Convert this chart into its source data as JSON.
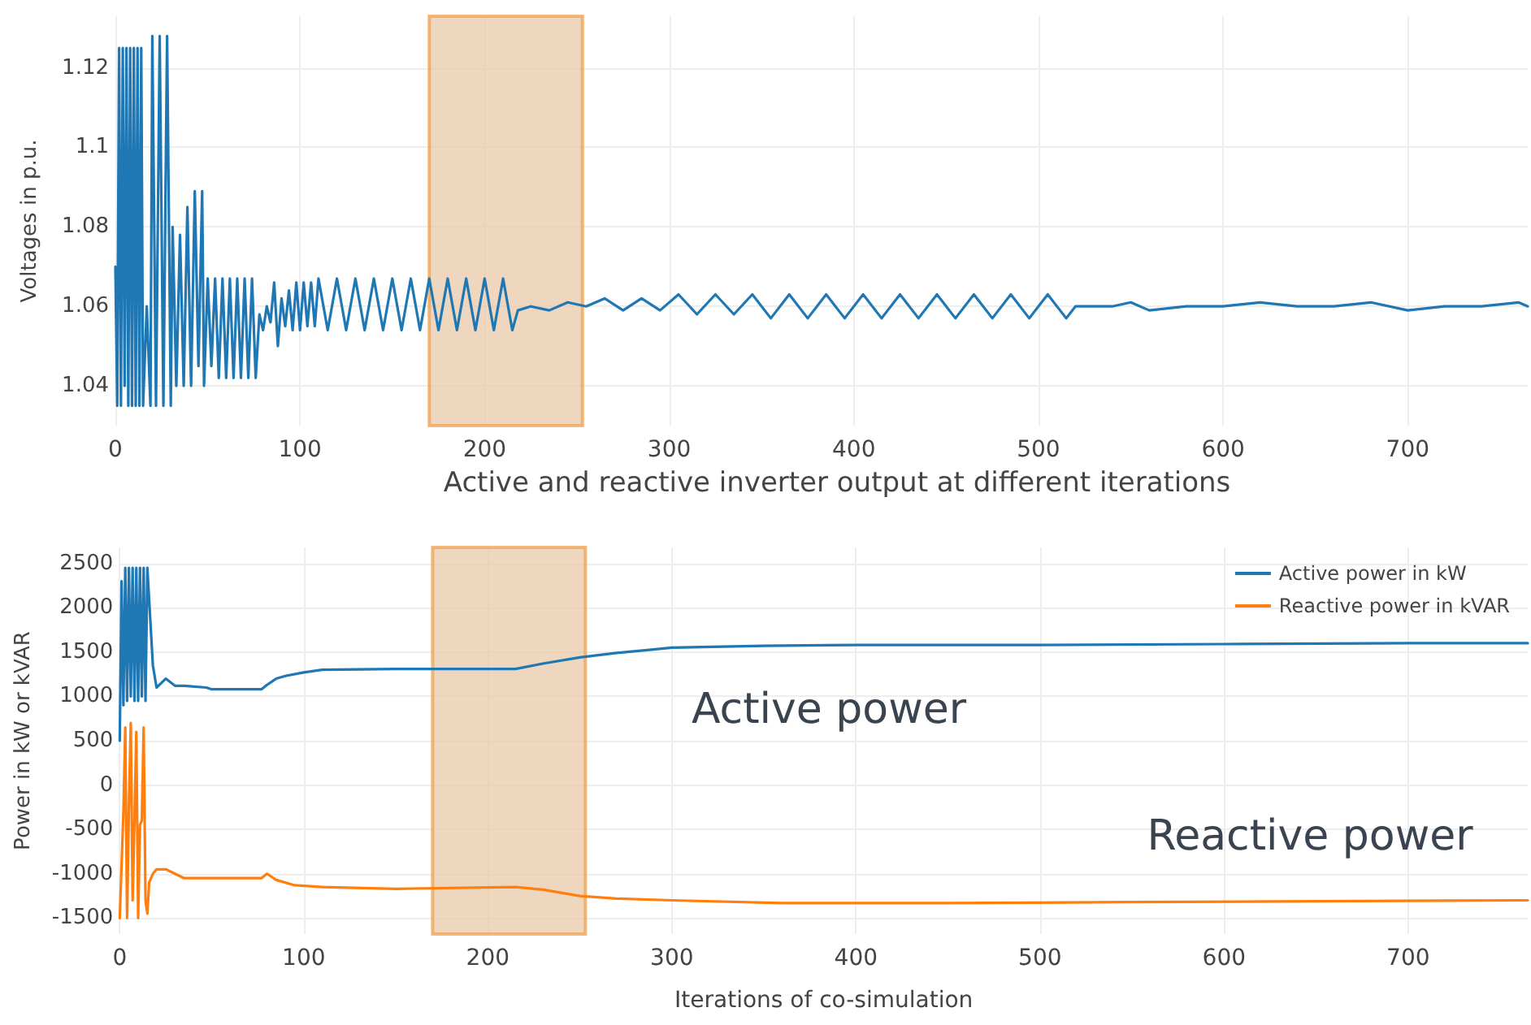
{
  "chart_data": [
    {
      "type": "line",
      "ylabel": "Voltages in p.u.",
      "xlim": [
        0,
        765
      ],
      "xticks": [
        0,
        100,
        200,
        300,
        400,
        500,
        600,
        700
      ],
      "ylim": [
        1.03,
        1.133
      ],
      "yticks": [
        1.04,
        1.06,
        1.08,
        1.1,
        1.12
      ],
      "grid": true,
      "legend": false,
      "marker": "none",
      "line_style": "solid",
      "bands": [
        {
          "axis": "x",
          "from": 170,
          "to": 253,
          "color": "#e9caa9"
        }
      ],
      "series": [
        {
          "color": "#1f77b4",
          "x": [
            0,
            1,
            2,
            3,
            4,
            5,
            6,
            7,
            8,
            9,
            10,
            11,
            12,
            13,
            14,
            15,
            17,
            19,
            20,
            22,
            24,
            26,
            28,
            30,
            31,
            33,
            35,
            37,
            39,
            41,
            43,
            45,
            47,
            48,
            50,
            52,
            54,
            56,
            58,
            60,
            62,
            64,
            66,
            68,
            70,
            72,
            74,
            76,
            78,
            80,
            82,
            84,
            86,
            88,
            90,
            92,
            94,
            96,
            98,
            100,
            102,
            104,
            106,
            108,
            110,
            115,
            120,
            125,
            130,
            135,
            140,
            145,
            150,
            155,
            160,
            165,
            170,
            175,
            180,
            185,
            190,
            195,
            200,
            205,
            210,
            215,
            218,
            225,
            235,
            245,
            255,
            265,
            275,
            285,
            295,
            305,
            315,
            325,
            335,
            345,
            355,
            365,
            375,
            385,
            395,
            405,
            415,
            425,
            435,
            445,
            455,
            465,
            475,
            485,
            495,
            505,
            515,
            520,
            540,
            550,
            560,
            580,
            600,
            620,
            640,
            660,
            680,
            700,
            720,
            740,
            760,
            765
          ],
          "values": [
            1.07,
            1.035,
            1.125,
            1.035,
            1.125,
            1.04,
            1.125,
            1.035,
            1.125,
            1.035,
            1.125,
            1.035,
            1.125,
            1.035,
            1.125,
            1.035,
            1.06,
            1.035,
            1.128,
            1.035,
            1.128,
            1.035,
            1.128,
            1.035,
            1.08,
            1.04,
            1.078,
            1.04,
            1.085,
            1.04,
            1.089,
            1.045,
            1.089,
            1.04,
            1.067,
            1.045,
            1.067,
            1.042,
            1.067,
            1.042,
            1.067,
            1.042,
            1.067,
            1.042,
            1.067,
            1.042,
            1.067,
            1.042,
            1.058,
            1.054,
            1.06,
            1.056,
            1.066,
            1.05,
            1.062,
            1.055,
            1.064,
            1.054,
            1.066,
            1.054,
            1.066,
            1.055,
            1.066,
            1.055,
            1.067,
            1.054,
            1.067,
            1.054,
            1.067,
            1.054,
            1.067,
            1.054,
            1.067,
            1.054,
            1.067,
            1.054,
            1.067,
            1.054,
            1.067,
            1.054,
            1.067,
            1.054,
            1.067,
            1.054,
            1.067,
            1.054,
            1.059,
            1.06,
            1.059,
            1.061,
            1.06,
            1.062,
            1.059,
            1.062,
            1.059,
            1.063,
            1.058,
            1.063,
            1.058,
            1.063,
            1.057,
            1.063,
            1.057,
            1.063,
            1.057,
            1.063,
            1.057,
            1.063,
            1.057,
            1.063,
            1.057,
            1.063,
            1.057,
            1.063,
            1.057,
            1.063,
            1.057,
            1.06,
            1.06,
            1.061,
            1.059,
            1.06,
            1.06,
            1.061,
            1.06,
            1.06,
            1.061,
            1.059,
            1.06,
            1.06,
            1.061,
            1.06
          ]
        }
      ]
    },
    {
      "type": "line",
      "title": "Active and reactive inverter output at different iterations",
      "xlabel": "Iterations of co-simulation",
      "ylabel": "Power in kW or kVAR",
      "xlim": [
        0,
        765
      ],
      "xticks": [
        0,
        100,
        200,
        300,
        400,
        500,
        600,
        700
      ],
      "ylim": [
        -1680,
        2680
      ],
      "yticks": [
        -1500,
        -1000,
        -500,
        0,
        500,
        1000,
        1500,
        2000,
        2500
      ],
      "grid": true,
      "legend": "top right",
      "marker": "none",
      "line_style": "solid",
      "bands": [
        {
          "axis": "x",
          "from": 170,
          "to": 253,
          "color": "#e9caa9"
        }
      ],
      "annotations": [
        "Active power",
        "Reactive power"
      ],
      "series": [
        {
          "name": "Active power in kW",
          "color": "#1f77b4",
          "x": [
            0,
            1,
            2,
            3,
            4,
            5,
            6,
            7,
            8,
            9,
            10,
            11,
            12,
            13,
            14,
            15,
            18,
            20,
            25,
            30,
            35,
            47,
            50,
            77,
            80,
            85,
            90,
            100,
            110,
            150,
            215,
            230,
            250,
            270,
            290,
            300,
            350,
            400,
            500,
            600,
            700,
            765
          ],
          "values": [
            500,
            2300,
            900,
            2450,
            950,
            2450,
            1000,
            2450,
            950,
            2450,
            950,
            2450,
            1000,
            2450,
            950,
            2450,
            1350,
            1100,
            1200,
            1120,
            1120,
            1100,
            1080,
            1080,
            1130,
            1200,
            1230,
            1270,
            1300,
            1310,
            1310,
            1370,
            1440,
            1490,
            1530,
            1550,
            1570,
            1580,
            1580,
            1590,
            1600,
            1600
          ]
        },
        {
          "name": "Reactive power in kVAR",
          "color": "#ff7f0e",
          "x": [
            0,
            2,
            3,
            4,
            5,
            6,
            7,
            8,
            9,
            10,
            11,
            12,
            13,
            14,
            15,
            16,
            18,
            20,
            25,
            30,
            35,
            47,
            50,
            77,
            80,
            85,
            95,
            110,
            150,
            215,
            230,
            250,
            270,
            300,
            360,
            450,
            550,
            650,
            765
          ],
          "values": [
            -1500,
            -300,
            650,
            -1500,
            -200,
            700,
            -1300,
            -400,
            600,
            -1500,
            -450,
            -400,
            650,
            -1300,
            -1450,
            -1100,
            -1000,
            -950,
            -950,
            -1000,
            -1050,
            -1050,
            -1050,
            -1050,
            -1000,
            -1070,
            -1130,
            -1150,
            -1170,
            -1150,
            -1180,
            -1250,
            -1280,
            -1300,
            -1330,
            -1330,
            -1320,
            -1310,
            -1300
          ]
        }
      ]
    }
  ]
}
